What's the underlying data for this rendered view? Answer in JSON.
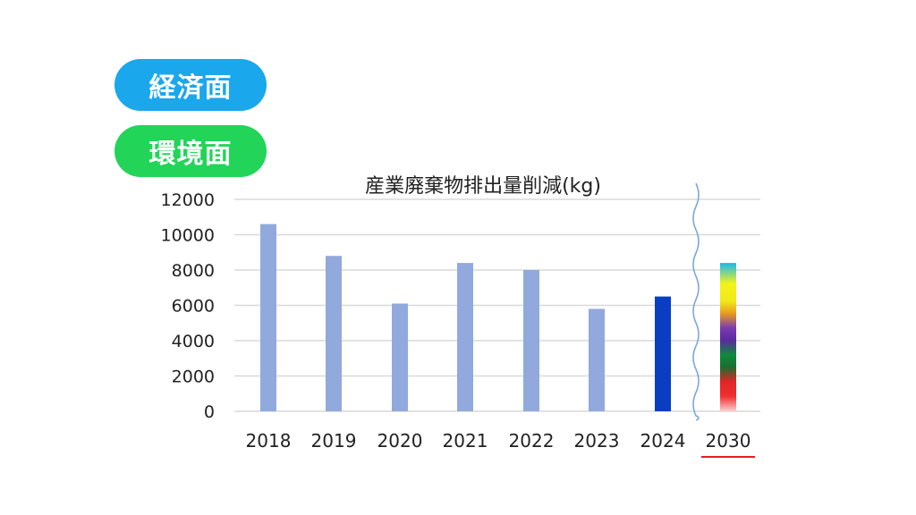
{
  "tags": {
    "economic": {
      "label": "経済面",
      "color": "#1aa7ec"
    },
    "environment": {
      "label": "環境面",
      "color": "#22d458"
    }
  },
  "chart_data": {
    "type": "bar",
    "title": "産業廃棄物排出量削減(kg)",
    "xlabel": "",
    "ylabel": "",
    "categories": [
      "2018",
      "2019",
      "2020",
      "2021",
      "2022",
      "2023",
      "2024",
      "2030"
    ],
    "values": [
      10600,
      8800,
      6100,
      8400,
      8000,
      5800,
      6500,
      8400
    ],
    "ylim": [
      0,
      12000
    ],
    "yticks": [
      0,
      2000,
      4000,
      6000,
      8000,
      10000,
      12000
    ],
    "grid": true,
    "colors": {
      "past": "#91a9dc",
      "current": "#0a3ec2",
      "gridline": "#d9d9d9",
      "break_line": "#7ea6dc",
      "target_underline": "#e02020"
    },
    "highlight_category": "2024",
    "target_category": "2030",
    "target_fill": "rainbow-gradient",
    "axis_break_between": [
      "2024",
      "2030"
    ]
  }
}
